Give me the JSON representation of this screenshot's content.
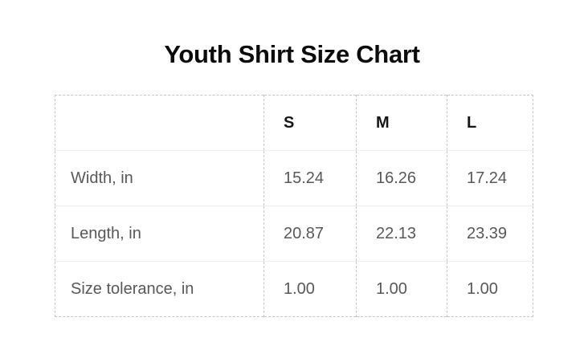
{
  "title": "Youth Shirt Size Chart",
  "colors": {
    "background": "#ffffff",
    "title_text": "#0c0c0c",
    "header_text": "#161616",
    "data_text": "#585858",
    "dashed_border": "#c5c5c5",
    "row_separator": "#ededed"
  },
  "table": {
    "columns": [
      "",
      "S",
      "M",
      "L"
    ],
    "rows": [
      {
        "label": "Width, in",
        "values": [
          "15.24",
          "16.26",
          "17.24"
        ]
      },
      {
        "label": "Length, in",
        "values": [
          "20.87",
          "22.13",
          "23.39"
        ]
      },
      {
        "label": "Size tolerance, in",
        "values": [
          "1.00",
          "1.00",
          "1.00"
        ]
      }
    ]
  },
  "chart_data": {
    "type": "table",
    "title": "Youth Shirt Size Chart",
    "columns": [
      "",
      "S",
      "M",
      "L"
    ],
    "rows": [
      [
        "Width, in",
        15.24,
        16.26,
        17.24
      ],
      [
        "Length, in",
        20.87,
        22.13,
        23.39
      ],
      [
        "Size tolerance, in",
        1.0,
        1.0,
        1.0
      ]
    ]
  }
}
